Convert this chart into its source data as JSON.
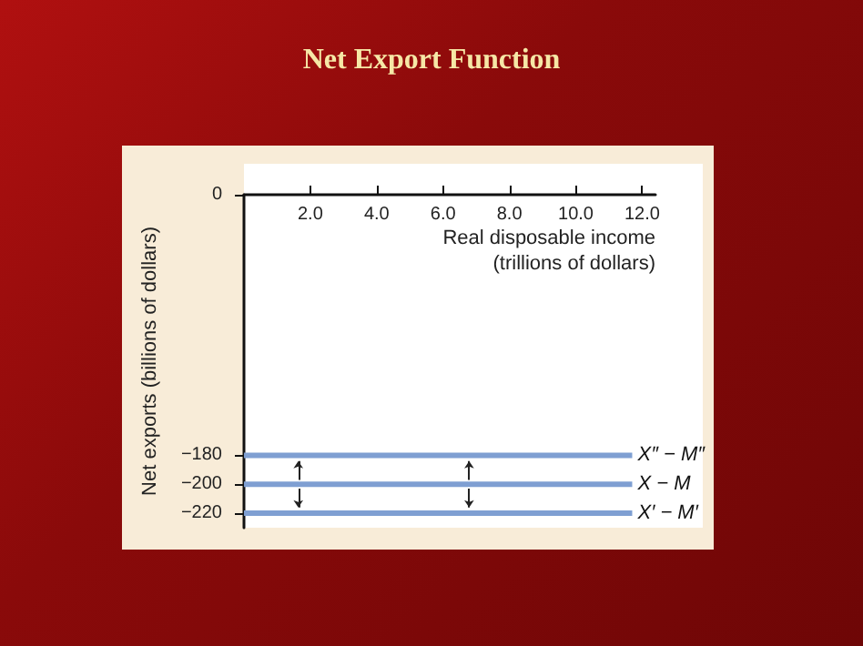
{
  "chart_data": {
    "type": "line",
    "title": "Net Export Function",
    "xlabel": "Real disposable income\n(trillions of dollars)",
    "ylabel": "Net exports (billions of dollars)",
    "x": [
      0,
      11.7
    ],
    "series": [
      {
        "name": "X″ − M″",
        "color": "#7f9fd2",
        "values": [
          -180,
          -180
        ]
      },
      {
        "name": "X − M",
        "color": "#7f9fd2",
        "values": [
          -200,
          -200
        ]
      },
      {
        "name": "X′ − M′",
        "color": "#7f9fd2",
        "values": [
          -220,
          -220
        ]
      }
    ],
    "xlim": [
      0,
      12.4
    ],
    "xticks": [
      {
        "value": 2,
        "label": "2.0"
      },
      {
        "value": 4,
        "label": "4.0"
      },
      {
        "value": 6,
        "label": "6.0"
      },
      {
        "value": 8,
        "label": "8.0"
      },
      {
        "value": 10,
        "label": "10.0"
      },
      {
        "value": 12,
        "label": "12.0"
      }
    ],
    "ylim": [
      -230,
      0
    ],
    "yticks": [
      0,
      -180,
      -200,
      -220
    ],
    "grid": false,
    "legend": false,
    "marker": "none",
    "line_style": "solid"
  }
}
